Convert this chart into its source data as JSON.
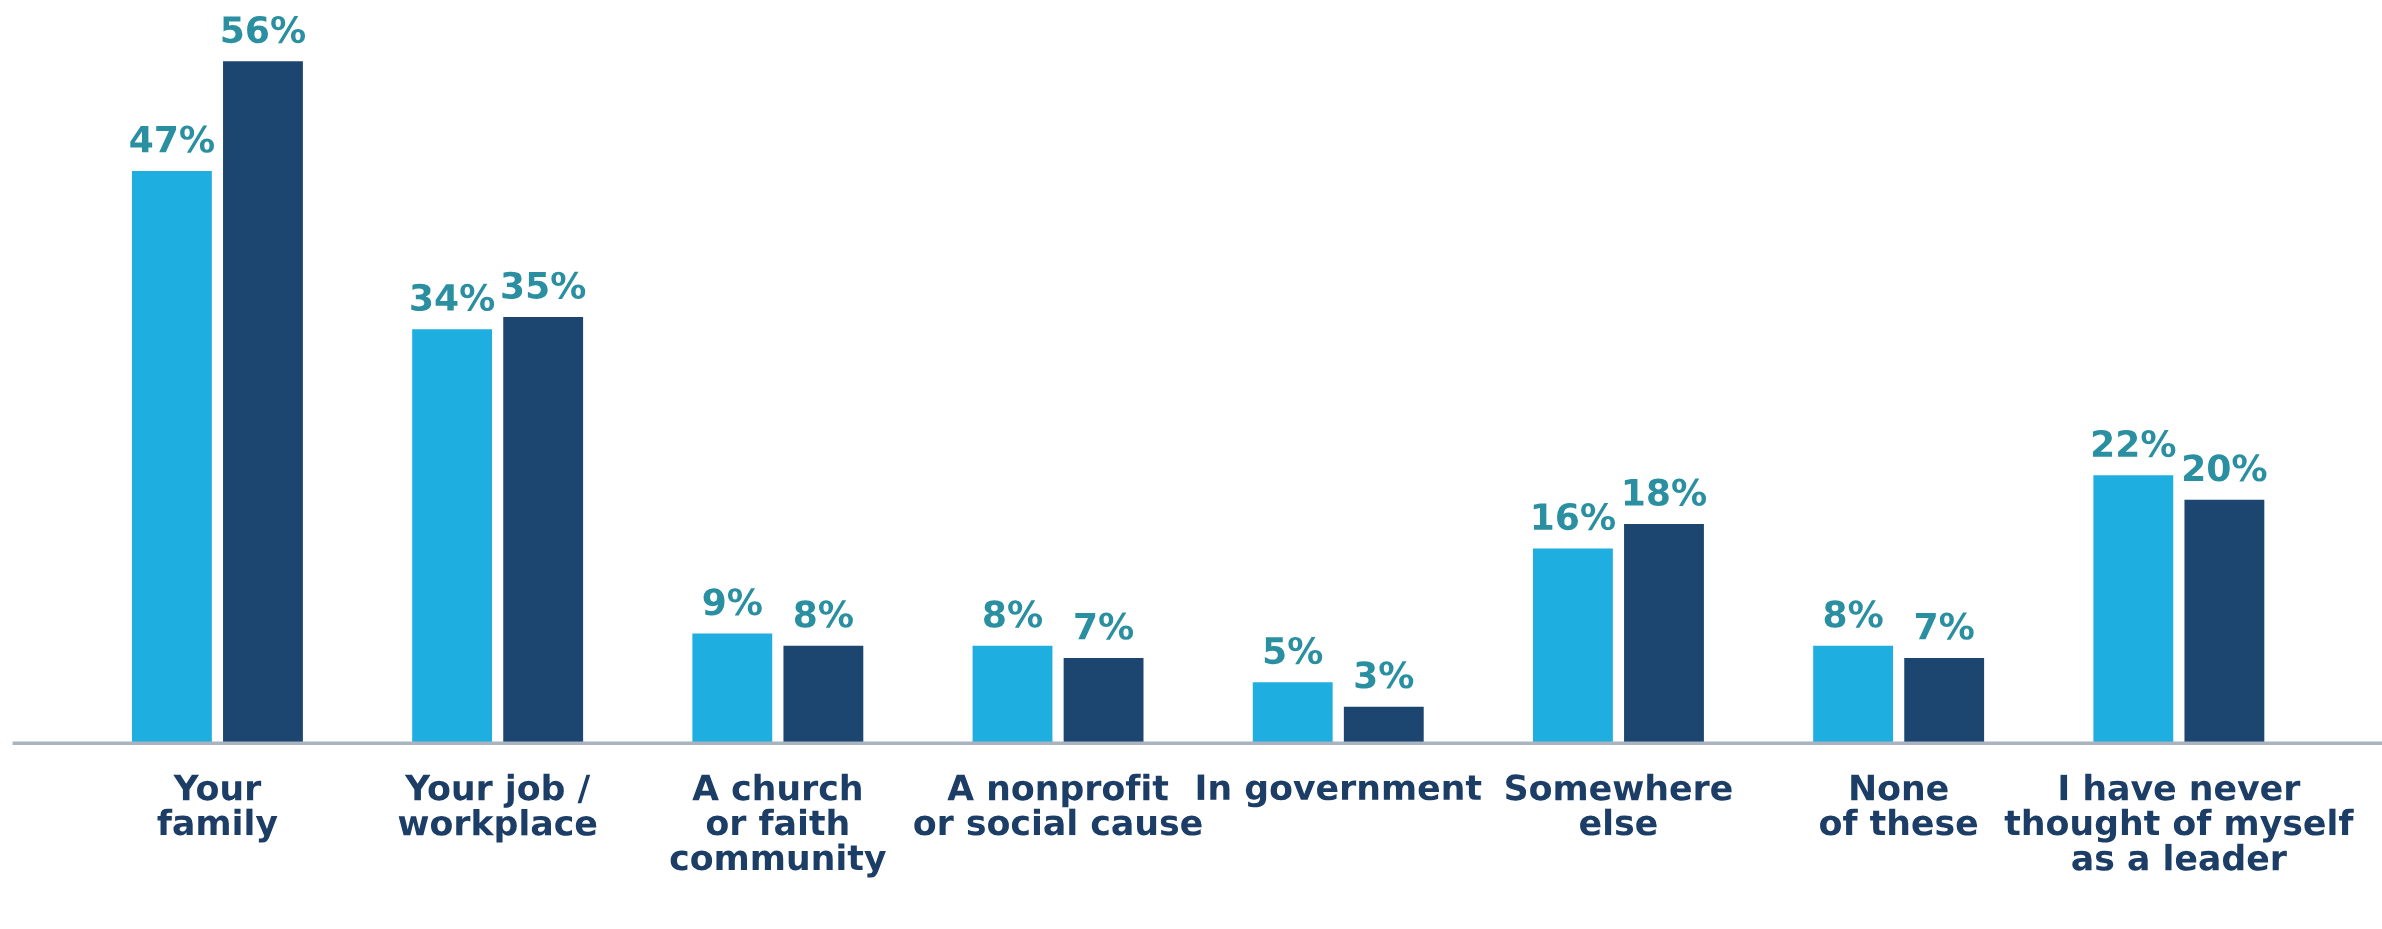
{
  "chart_data": {
    "type": "bar",
    "categories": [
      "Your\nfamily",
      "Your job /\nworkplace",
      "A church\nor faith\ncommunity",
      "A nonprofit\nor social cause",
      "In government",
      "Somewhere\nelse",
      "None\nof these",
      "I have never\nthought of myself\nas a leader"
    ],
    "series": [
      {
        "color": "#1eaee0",
        "values": [
          47,
          34,
          9,
          8,
          5,
          16,
          8,
          22
        ],
        "value_labels": [
          "47%",
          "34%",
          "9%",
          "8%",
          "5%",
          "16%",
          "8%",
          "22%"
        ]
      },
      {
        "color": "#1c4670",
        "values": [
          56,
          35,
          8,
          7,
          3,
          18,
          7,
          20
        ],
        "value_labels": [
          "56%",
          "35%",
          "8%",
          "7%",
          "3%",
          "18%",
          "7%",
          "20%"
        ]
      }
    ],
    "grid": false,
    "legend": false
  }
}
